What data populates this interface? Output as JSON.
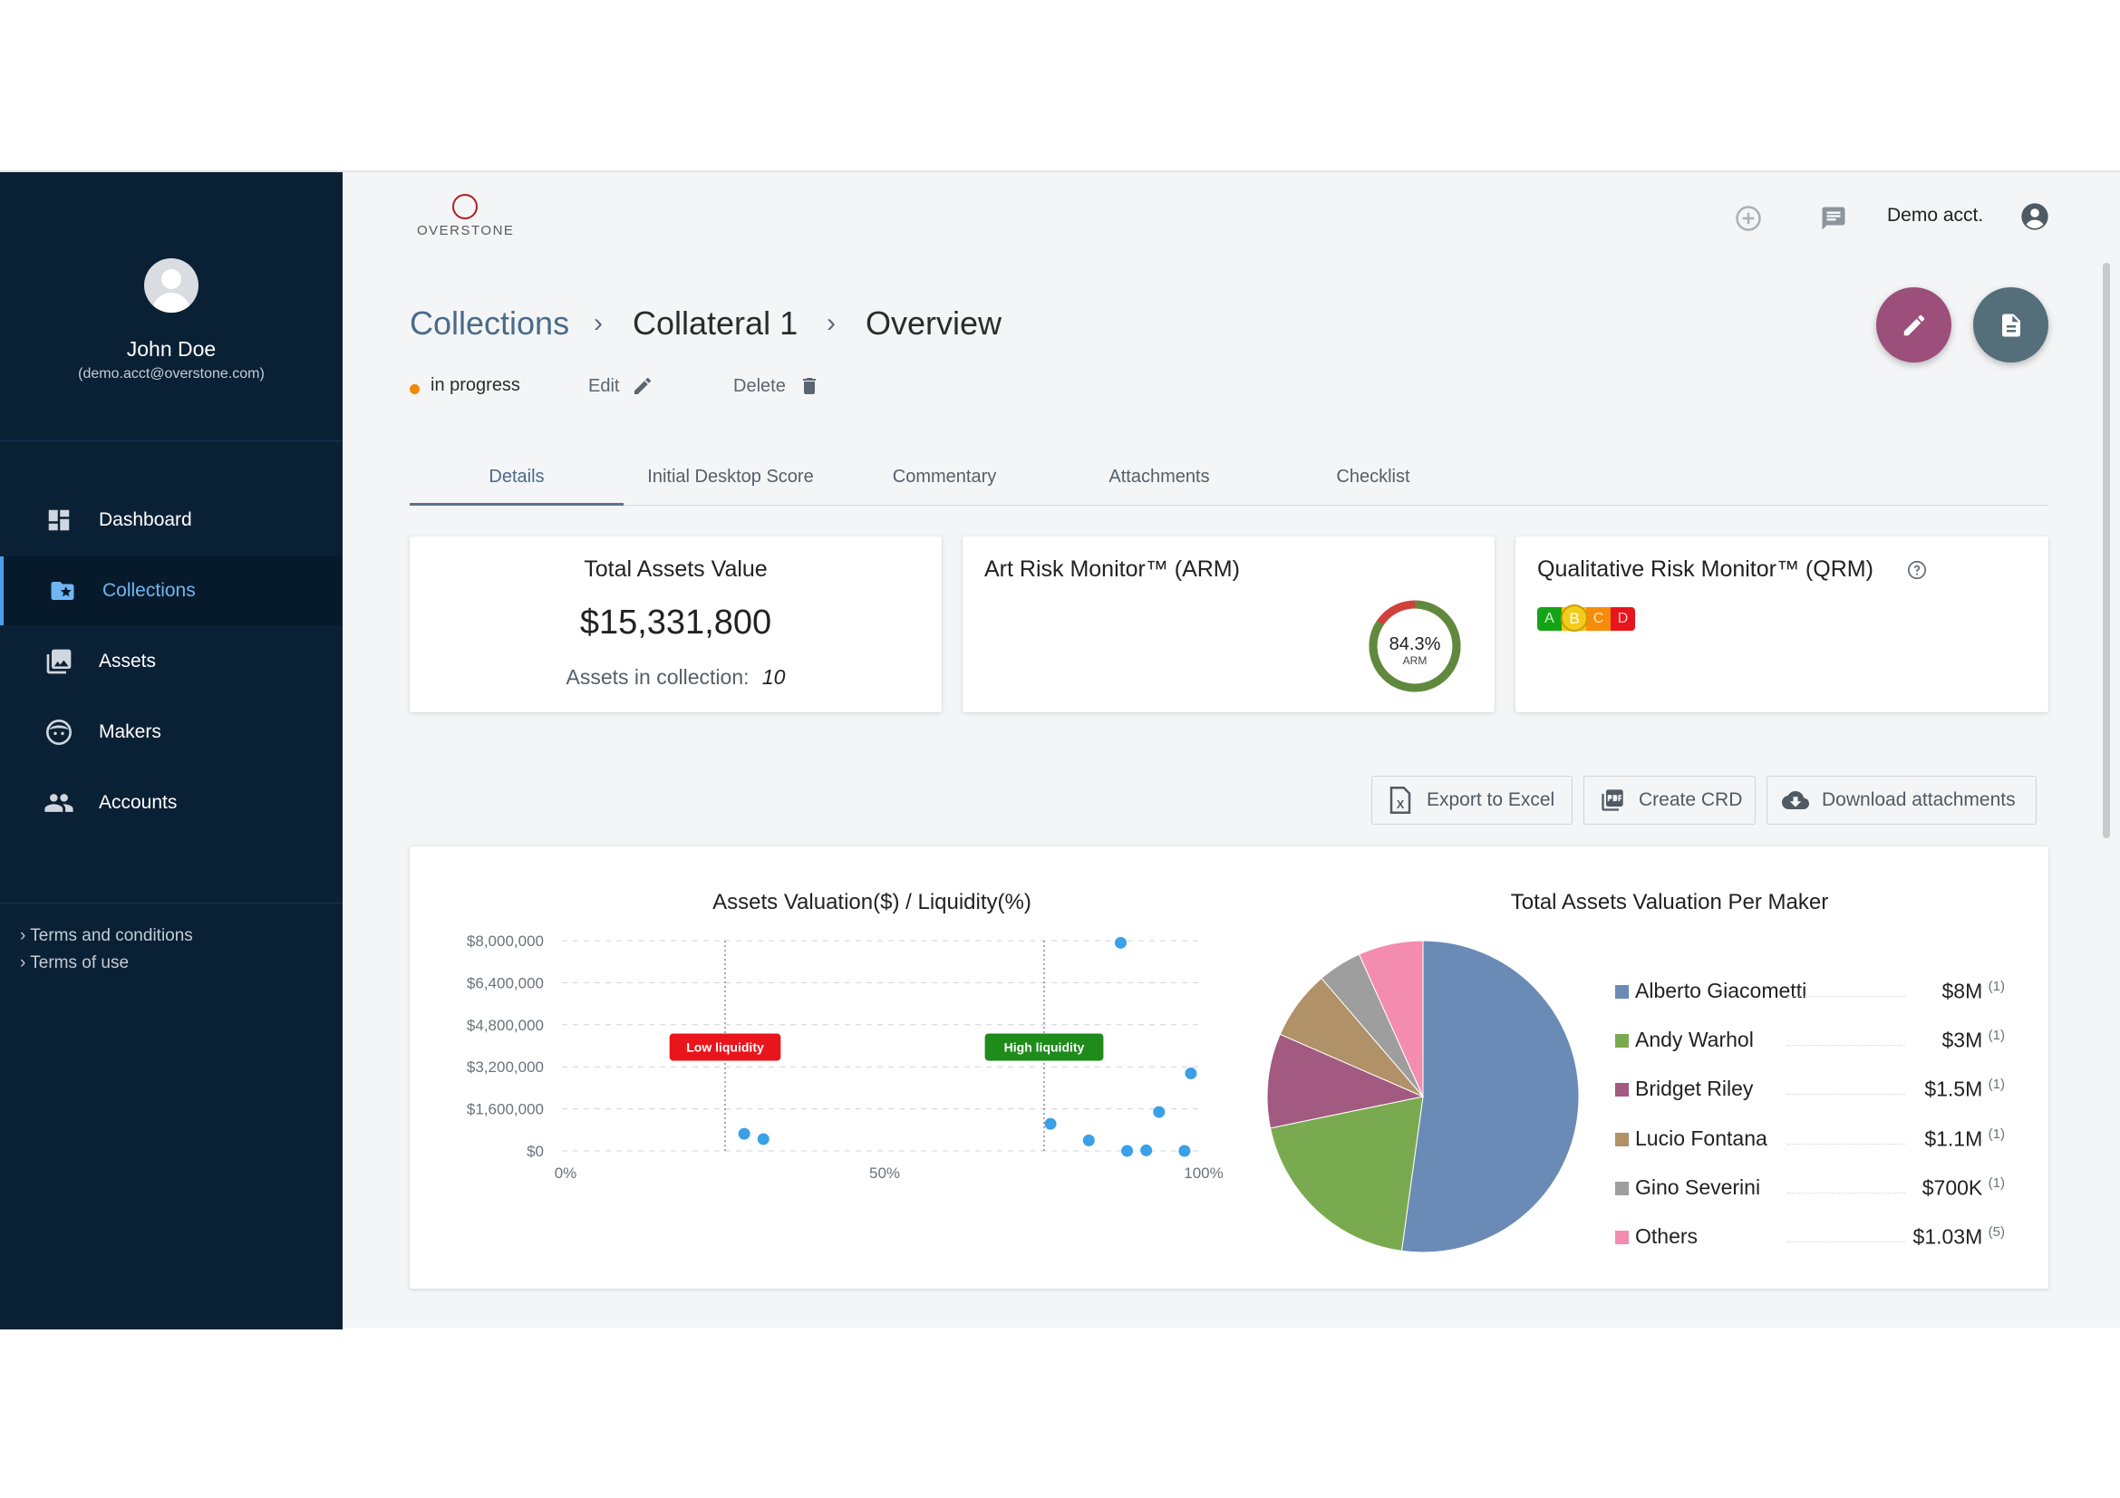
{
  "app": {
    "logo_text": "OVERSTONE"
  },
  "user": {
    "name": "John Doe",
    "email": "(demo.acct@overstone.com)"
  },
  "sidebar": {
    "items": [
      {
        "label": "Dashboard",
        "icon": "dashboard-icon"
      },
      {
        "label": "Collections",
        "icon": "collections-icon",
        "active": true
      },
      {
        "label": "Assets",
        "icon": "assets-icon"
      },
      {
        "label": "Makers",
        "icon": "makers-icon"
      },
      {
        "label": "Accounts",
        "icon": "accounts-icon"
      }
    ],
    "legal": [
      "› Terms and conditions",
      "› Terms of use"
    ]
  },
  "header": {
    "account_label": "Demo acct."
  },
  "breadcrumb": [
    "Collections",
    "Collateral 1",
    "Overview"
  ],
  "status": {
    "label": "in progress",
    "color": "#f08a00"
  },
  "actions": {
    "edit": "Edit",
    "delete": "Delete"
  },
  "tabs": [
    "Details",
    "Initial Desktop Score",
    "Commentary",
    "Attachments",
    "Checklist"
  ],
  "cards": {
    "total": {
      "title": "Total Assets Value",
      "value": "$15,331,800",
      "count_label": "Assets in collection:",
      "count": "10"
    },
    "arm": {
      "title": "Art Risk Monitor™ (ARM)",
      "value": "84.3%",
      "label": "ARM",
      "percent": 84.3
    },
    "qrm": {
      "title": "Qualitative Risk Monitor™ (QRM)",
      "grades": [
        "A",
        "B",
        "C",
        "D"
      ],
      "selected": "B"
    }
  },
  "buttons": {
    "export": "Export to Excel",
    "crd": "Create CRD",
    "download": "Download attachments"
  },
  "colors": {
    "sidebar": "#0a2035",
    "accent": "#4c9ee8",
    "fab_edit": "#9c4f7a",
    "fab_doc": "#546e7a",
    "point": "#3aa0e8",
    "low_liquidity": "#e8151c",
    "high_liquidity": "#1e8b1a"
  },
  "chart_data": [
    {
      "type": "scatter",
      "title": "Assets Valuation($) / Liquidity(%)",
      "xlabel": "",
      "ylabel": "",
      "xlim": [
        0,
        100
      ],
      "ylim": [
        0,
        8000000
      ],
      "x_ticks": [
        "0%",
        "50%",
        "100%"
      ],
      "y_ticks": [
        "$8,000,000",
        "$6,400,000",
        "$4,800,000",
        "$3,200,000",
        "$1,600,000",
        "$0"
      ],
      "grid": "horizontal dashed",
      "points": [
        {
          "x": 87,
          "y": 7920000
        },
        {
          "x": 98,
          "y": 2950000
        },
        {
          "x": 93,
          "y": 1480000
        },
        {
          "x": 76,
          "y": 1030000
        },
        {
          "x": 82,
          "y": 400000
        },
        {
          "x": 88,
          "y": 0
        },
        {
          "x": 91,
          "y": 20000
        },
        {
          "x": 97,
          "y": 0
        },
        {
          "x": 28,
          "y": 650000
        },
        {
          "x": 31,
          "y": 450000
        }
      ],
      "annotations": [
        {
          "label": "Low liquidity",
          "x": 25,
          "y": 3950000
        },
        {
          "label": "High liquidity",
          "x": 75,
          "y": 3950000
        }
      ]
    },
    {
      "type": "pie",
      "title": "Total Assets Valuation Per Maker",
      "slices": [
        {
          "name": "Alberto Giacometti",
          "value": 8000000,
          "label": "$8M",
          "count": "(1)",
          "color": "#6a8bb5"
        },
        {
          "name": "Andy Warhol",
          "value": 3000000,
          "label": "$3M",
          "count": "(1)",
          "color": "#7aaa50"
        },
        {
          "name": "Bridget Riley",
          "value": 1500000,
          "label": "$1.5M",
          "count": "(1)",
          "color": "#a25a80"
        },
        {
          "name": "Lucio Fontana",
          "value": 1100000,
          "label": "$1.1M",
          "count": "(1)",
          "color": "#b09168"
        },
        {
          "name": "Gino Severini",
          "value": 700000,
          "label": "$700K",
          "count": "(1)",
          "color": "#9e9e9e"
        },
        {
          "name": "Others",
          "value": 1030000,
          "label": "$1.03M",
          "count": "(5)",
          "color": "#f48cb0"
        }
      ]
    }
  ]
}
